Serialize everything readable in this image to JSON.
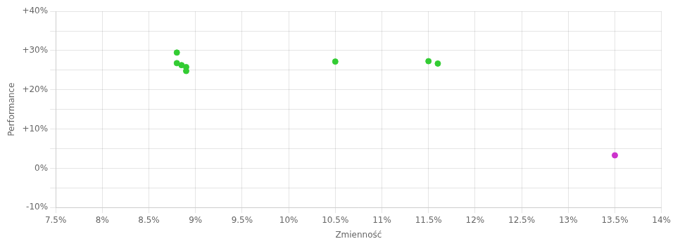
{
  "chart_data": {
    "type": "scatter",
    "xlabel": "Zmienność",
    "ylabel": "Performance",
    "series": [
      {
        "color": "#33cc33",
        "x": [
          0.088,
          0.088,
          0.0885,
          0.089,
          0.089,
          0.105,
          0.115,
          0.116
        ],
        "values": [
          0.295,
          0.268,
          0.263,
          0.258,
          0.248,
          0.272,
          0.273,
          0.267
        ]
      },
      {
        "color": "#cc33cc",
        "x": [
          0.135
        ],
        "values": [
          0.033
        ]
      }
    ],
    "xlim": [
      0.075,
      0.14
    ],
    "ylim": [
      -0.1,
      0.4
    ],
    "xticks": [
      {
        "value": 0.075,
        "label": "7.5%"
      },
      {
        "value": 0.08,
        "label": "8%"
      },
      {
        "value": 0.085,
        "label": "8.5%"
      },
      {
        "value": 0.09,
        "label": "9%"
      },
      {
        "value": 0.095,
        "label": "9.5%"
      },
      {
        "value": 0.1,
        "label": "10%"
      },
      {
        "value": 0.105,
        "label": "10.5%"
      },
      {
        "value": 0.11,
        "label": "11%"
      },
      {
        "value": 0.115,
        "label": "11.5%"
      },
      {
        "value": 0.12,
        "label": "12%"
      },
      {
        "value": 0.125,
        "label": "12.5%"
      },
      {
        "value": 0.13,
        "label": "13%"
      },
      {
        "value": 0.135,
        "label": "13.5%"
      },
      {
        "value": 0.14,
        "label": "14%"
      }
    ],
    "yticks": [
      {
        "value": -0.1,
        "label": "-10%"
      },
      {
        "value": -0.05,
        "label": null
      },
      {
        "value": 0.0,
        "label": "0%"
      },
      {
        "value": 0.05,
        "label": null
      },
      {
        "value": 0.1,
        "label": "+10%"
      },
      {
        "value": 0.15,
        "label": null
      },
      {
        "value": 0.2,
        "label": "+20%"
      },
      {
        "value": 0.25,
        "label": null
      },
      {
        "value": 0.3,
        "label": "+30%"
      },
      {
        "value": 0.35,
        "label": null
      },
      {
        "value": 0.4,
        "label": "+40%"
      }
    ],
    "grid": true
  }
}
